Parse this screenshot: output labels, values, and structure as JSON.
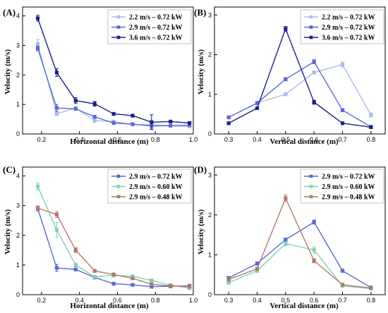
{
  "chart_data": [
    {
      "type": "line",
      "panel_label": "(A)",
      "xlabel": "Horizontal distance (m)",
      "ylabel": "Velocity (m/s)",
      "xlim": [
        0.1,
        1.0
      ],
      "ylim": [
        0,
        4.3
      ],
      "xticks": [
        0.2,
        0.4,
        0.6,
        0.8,
        1.0
      ],
      "xtick_labels": [
        "0.2",
        "0.4",
        "0.6",
        "0.8",
        "1.0"
      ],
      "yticks": [
        0,
        1,
        2,
        3,
        4
      ],
      "ytick_labels": [
        "0",
        "1",
        "2",
        "3",
        "4"
      ],
      "legend_position": "top-right",
      "x": [
        0.18,
        0.28,
        0.38,
        0.48,
        0.58,
        0.68,
        0.78,
        0.88,
        0.98
      ],
      "series": [
        {
          "name": "2.2 m/s – 0.72 kW",
          "color": "#a9bde8",
          "y": [
            3.05,
            0.68,
            0.88,
            0.45,
            0.42,
            0.32,
            0.31,
            0.28,
            0.25
          ],
          "err": [
            0.15,
            0.06,
            0.05,
            0.04,
            0.03,
            0.03,
            0.03,
            0.03,
            0.02
          ]
        },
        {
          "name": "2.9 m/s – 0.72 kW",
          "color": "#5a67d8",
          "y": [
            2.9,
            0.88,
            0.85,
            0.58,
            0.37,
            0.33,
            0.27,
            0.28,
            0.3
          ],
          "err": [
            0.08,
            0.12,
            0.04,
            0.05,
            0.03,
            0.03,
            0.1,
            0.03,
            0.03
          ]
        },
        {
          "name": "3.6 m/s – 0.72 kW",
          "color": "#1b1f8f",
          "y": [
            3.92,
            2.08,
            1.13,
            1.02,
            0.68,
            0.62,
            0.4,
            0.42,
            0.37
          ],
          "err": [
            0.1,
            0.13,
            0.1,
            0.08,
            0.05,
            0.05,
            0.25,
            0.03,
            0.03
          ]
        }
      ]
    },
    {
      "type": "line",
      "panel_label": "(B)",
      "xlabel": "Vertical distance (m)",
      "ylabel": "Velocity (m/s)",
      "xlim": [
        0.25,
        0.85
      ],
      "ylim": [
        0,
        3.2
      ],
      "xticks": [
        0.3,
        0.4,
        0.5,
        0.6,
        0.7,
        0.8
      ],
      "xtick_labels": [
        "0.3",
        "0.4",
        "0.5",
        "0.6",
        "0.7",
        "0.8"
      ],
      "yticks": [
        0,
        1,
        2,
        3
      ],
      "ytick_labels": [
        "0",
        "1",
        "2",
        "3"
      ],
      "legend_position": "top-right",
      "x": [
        0.3,
        0.4,
        0.5,
        0.6,
        0.7,
        0.8
      ],
      "series": [
        {
          "name": "2.2 m/s – 0.72 kW",
          "color": "#a9bde8",
          "y": [
            0.42,
            0.78,
            1.0,
            1.55,
            1.75,
            0.48
          ],
          "err": [
            0.03,
            0.04,
            0.03,
            0.04,
            0.06,
            0.05
          ]
        },
        {
          "name": "2.9 m/s – 0.72 kW",
          "color": "#5a67d8",
          "y": [
            0.42,
            0.78,
            1.38,
            1.82,
            0.6,
            0.18
          ],
          "err": [
            0.03,
            0.04,
            0.04,
            0.05,
            0.04,
            0.02
          ]
        },
        {
          "name": "3.6 m/s – 0.72 kW",
          "color": "#1b1f8f",
          "y": [
            0.27,
            0.65,
            2.65,
            0.8,
            0.27,
            0.17
          ],
          "err": [
            0.02,
            0.03,
            0.06,
            0.05,
            0.02,
            0.02
          ]
        }
      ]
    },
    {
      "type": "line",
      "panel_label": "(C)",
      "xlabel": "Horizontal distance (m)",
      "ylabel": "Velocity (m/s)",
      "xlim": [
        0.1,
        1.0
      ],
      "ylim": [
        0,
        4.3
      ],
      "xticks": [
        0.2,
        0.4,
        0.6,
        0.8,
        1.0
      ],
      "xtick_labels": [
        "0.2",
        "0.4",
        "0.6",
        "0.8",
        "1.0"
      ],
      "yticks": [
        0,
        1,
        2,
        3,
        4
      ],
      "ytick_labels": [
        "0",
        "1",
        "2",
        "3",
        "4"
      ],
      "legend_position": "top-right",
      "x": [
        0.18,
        0.28,
        0.38,
        0.48,
        0.58,
        0.68,
        0.78,
        0.88,
        0.98
      ],
      "series": [
        {
          "name": "2.9 m/s – 0.72 kW",
          "color": "#5a67d8",
          "y": [
            2.9,
            0.9,
            0.85,
            0.58,
            0.37,
            0.33,
            0.27,
            0.28,
            0.3
          ],
          "err": [
            0.08,
            0.12,
            0.04,
            0.05,
            0.03,
            0.03,
            0.05,
            0.03,
            0.03
          ]
        },
        {
          "name": "2.9 m/s – 0.60 kW",
          "color": "#7fd1b0",
          "y": [
            3.65,
            2.18,
            1.0,
            0.6,
            0.65,
            0.62,
            0.48,
            0.32,
            0.22
          ],
          "err": [
            0.12,
            0.25,
            0.06,
            0.05,
            0.05,
            0.05,
            0.04,
            0.03,
            0.03
          ]
        },
        {
          "name": "2.9 m/s – 0.48 kW",
          "color": "#b07a68",
          "y": [
            2.92,
            2.7,
            1.5,
            0.8,
            0.68,
            0.55,
            0.35,
            0.3,
            0.27
          ],
          "err": [
            0.07,
            0.1,
            0.08,
            0.05,
            0.05,
            0.04,
            0.03,
            0.03,
            0.03
          ]
        }
      ]
    },
    {
      "type": "line",
      "panel_label": "(D)",
      "xlabel": "Vertical distance (m)",
      "ylabel": "Velocity (m/s)",
      "xlim": [
        0.25,
        0.85
      ],
      "ylim": [
        0,
        3.2
      ],
      "xticks": [
        0.3,
        0.4,
        0.5,
        0.6,
        0.7,
        0.8
      ],
      "xtick_labels": [
        "0.3",
        "0.4",
        "0.5",
        "0.6",
        "0.7",
        "0.8"
      ],
      "yticks": [
        0,
        1,
        2,
        3
      ],
      "ytick_labels": [
        "0",
        "1",
        "2",
        "3"
      ],
      "legend_position": "top-right",
      "x": [
        0.3,
        0.4,
        0.5,
        0.6,
        0.7,
        0.8
      ],
      "series": [
        {
          "name": "2.9 m/s – 0.72 kW",
          "color": "#5a67d8",
          "y": [
            0.42,
            0.78,
            1.38,
            1.82,
            0.6,
            0.18
          ],
          "err": [
            0.03,
            0.04,
            0.04,
            0.05,
            0.04,
            0.02
          ]
        },
        {
          "name": "2.9 m/s – 0.60 kW",
          "color": "#7fd1b0",
          "y": [
            0.3,
            0.6,
            1.28,
            1.12,
            0.22,
            0.15
          ],
          "err": [
            0.03,
            0.04,
            0.05,
            0.08,
            0.03,
            0.02
          ]
        },
        {
          "name": "2.9 m/s – 0.48 kW",
          "color": "#b07a68",
          "y": [
            0.38,
            0.65,
            2.42,
            0.85,
            0.25,
            0.17
          ],
          "err": [
            0.03,
            0.04,
            0.08,
            0.05,
            0.03,
            0.02
          ]
        }
      ]
    }
  ]
}
